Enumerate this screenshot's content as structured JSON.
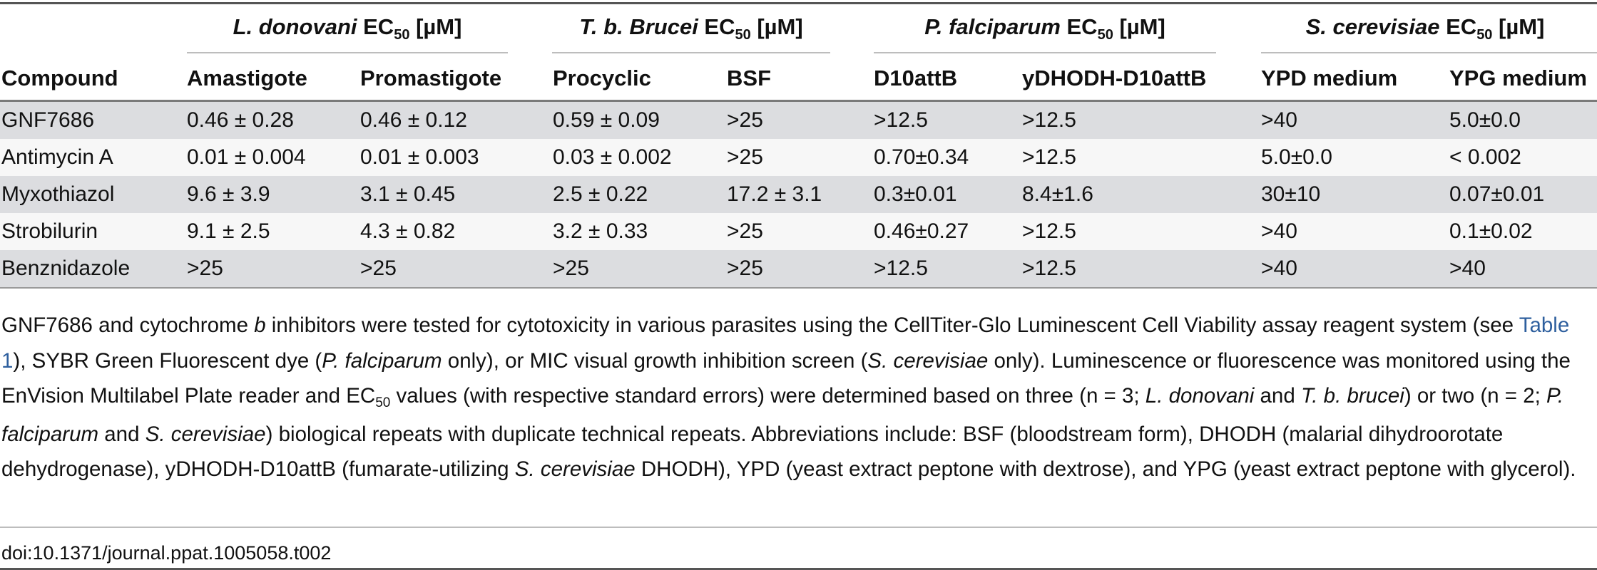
{
  "groups": [
    {
      "species": "L. donovani",
      "suffix": " EC",
      "sub": "50",
      "unit": " [µM]"
    },
    {
      "species": "T. b. Brucei",
      "suffix": " EC",
      "sub": "50",
      "unit": " [µM]"
    },
    {
      "species": "P. falciparum",
      "suffix": " EC",
      "sub": "50",
      "unit": " [µM]"
    },
    {
      "species": "S. cerevisiae",
      "suffix": " EC",
      "sub": "50",
      "unit": " [µM]"
    }
  ],
  "columns": [
    "Compound",
    "Amastigote",
    "Promastigote",
    "Procyclic",
    "BSF",
    "D10attB",
    "yDHODH-D10attB",
    "YPD medium",
    "YPG medium"
  ],
  "rows": [
    [
      "GNF7686",
      "0.46 ± 0.28",
      "0.46 ± 0.12",
      "0.59 ± 0.09",
      ">25",
      ">12.5",
      ">12.5",
      ">40",
      "5.0±0.0"
    ],
    [
      "Antimycin A",
      "0.01 ± 0.004",
      "0.01 ± 0.003",
      "0.03 ± 0.002",
      ">25",
      "0.70±0.34",
      ">12.5",
      "5.0±0.0",
      "< 0.002"
    ],
    [
      "Myxothiazol",
      "9.6 ± 3.9",
      "3.1 ± 0.45",
      "2.5 ± 0.22",
      "17.2 ± 3.1",
      "0.3±0.01",
      "8.4±1.6",
      "30±10",
      "0.07±0.01"
    ],
    [
      "Strobilurin",
      "9.1 ± 2.5",
      "4.3 ± 0.82",
      "3.2 ± 0.33",
      ">25",
      "0.46±0.27",
      ">12.5",
      ">40",
      "0.1±0.02"
    ],
    [
      "Benznidazole",
      ">25",
      ">25",
      ">25",
      ">25",
      ">12.5",
      ">12.5",
      ">40",
      ">40"
    ]
  ],
  "caption": {
    "t1": "GNF7686 and cytochrome ",
    "t2": "b",
    "t3": " inhibitors were tested for cytotoxicity in various parasites using the CellTiter-Glo Luminescent Cell Viability assay reagent system (see ",
    "link": "Table 1",
    "t4": "), SYBR Green Fluorescent dye (",
    "t5": "P. falciparum",
    "t6": " only), or MIC visual growth inhibition screen (",
    "t7": "S. cerevisiae",
    "t8": " only). Luminescence or fluorescence was monitored using the EnVision Multilabel Plate reader and EC",
    "t9": "50",
    "t10": " values (with respective standard errors) were determined based on three (n = 3; ",
    "t11": "L. donovani",
    "t12": " and ",
    "t13": "T. b. brucei",
    "t14": ") or two (n = 2; ",
    "t15": "P. falciparum",
    "t16": " and ",
    "t17": "S. cerevisiae",
    "t18": ") biological repeats with duplicate technical repeats. Abbreviations include: BSF (bloodstream form), DHODH (malarial dihydroorotate dehydrogenase), yDHODH-D10attB (fumarate-utilizing ",
    "t19": "S. cerevisiae",
    "t20": " DHODH), YPD (yeast extract peptone with dextrose), and YPG (yeast extract peptone with glycerol)."
  },
  "doi": "doi:10.1371/journal.ppat.1005058.t002"
}
